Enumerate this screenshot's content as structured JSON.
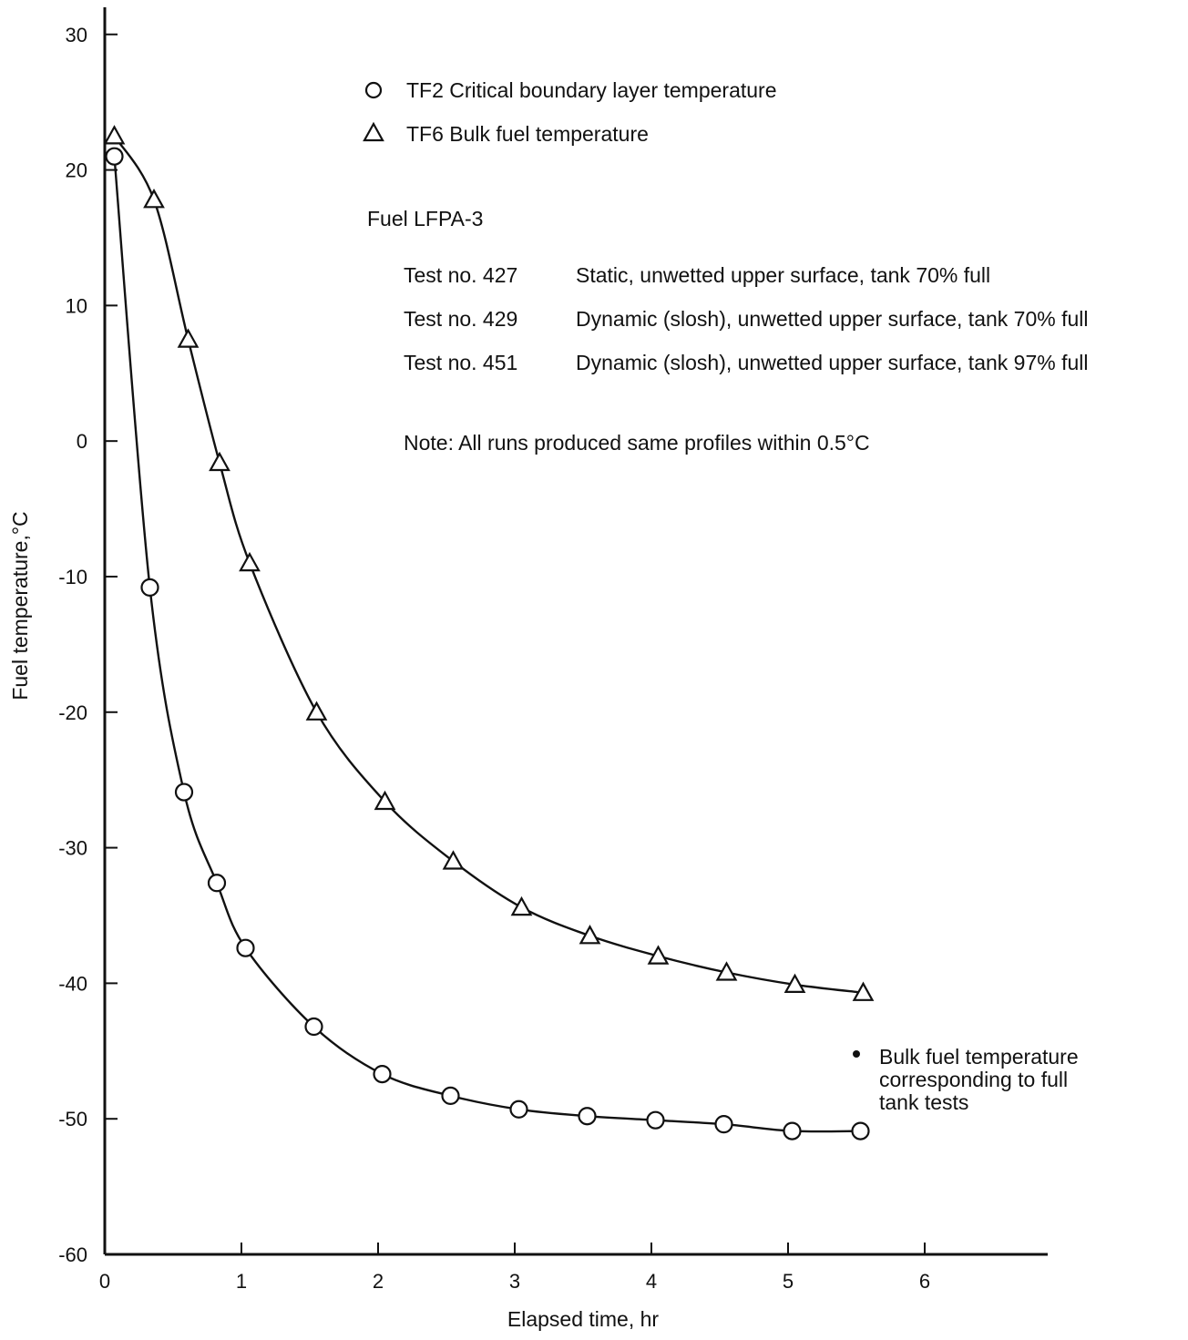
{
  "chart_data": {
    "type": "line",
    "xlabel": "Elapsed time, hr",
    "ylabel": "Fuel temperature,°C",
    "xlim": [
      0,
      6.9
    ],
    "ylim": [
      -60,
      32
    ],
    "xticks": [
      0,
      1,
      2,
      3,
      4,
      5,
      6
    ],
    "yticks": [
      30,
      20,
      10,
      0,
      -10,
      -20,
      -30,
      -40,
      -50,
      -60
    ],
    "grid": false,
    "legend_position": "top",
    "series": [
      {
        "name": "TF2 Critical boundary layer temperature",
        "marker": "circle",
        "x": [
          0.07,
          0.33,
          0.58,
          0.82,
          1.03,
          1.53,
          2.03,
          2.53,
          3.03,
          3.53,
          4.03,
          4.53,
          5.03,
          5.53
        ],
        "y": [
          21.0,
          -10.8,
          -25.9,
          -32.6,
          -37.4,
          -43.2,
          -46.7,
          -48.3,
          -49.3,
          -49.8,
          -50.1,
          -50.4,
          -50.9,
          -50.9
        ]
      },
      {
        "name": "TF6 Bulk fuel temperature",
        "marker": "triangle",
        "x": [
          0.07,
          0.36,
          0.61,
          0.84,
          1.06,
          1.55,
          2.05,
          2.55,
          3.05,
          3.55,
          4.05,
          4.55,
          5.05,
          5.55
        ],
        "y": [
          22.5,
          17.8,
          7.5,
          -1.6,
          -9.0,
          -20.0,
          -26.6,
          -31.0,
          -34.4,
          -36.5,
          -38.0,
          -39.2,
          -40.1,
          -40.7
        ]
      }
    ],
    "annotations": {
      "fuel": "Fuel LFPA-3",
      "tests": [
        {
          "id": "Test no. 427",
          "desc": "Static, unwetted upper surface, tank 70% full"
        },
        {
          "id": "Test no. 429",
          "desc": "Dynamic (slosh), unwetted upper surface, tank 70% full"
        },
        {
          "id": "Test no. 451",
          "desc": "Dynamic (slosh), unwetted upper surface, tank 97% full"
        }
      ],
      "note": "Note: All runs produced same profiles within 0.5°C",
      "bulk_note_lines": [
        "Bulk fuel temperature",
        "corresponding to full",
        "tank tests"
      ]
    }
  }
}
